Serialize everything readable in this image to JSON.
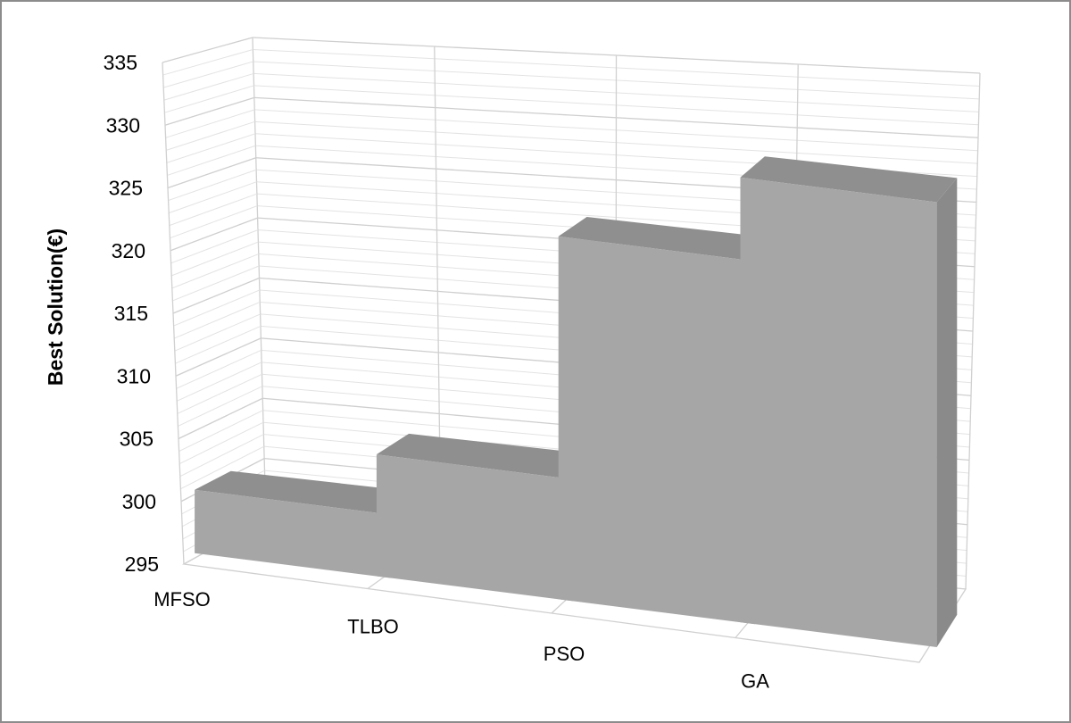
{
  "chart_data": {
    "type": "bar",
    "style": "3d-column",
    "categories": [
      "MFSO",
      "TLBO",
      "PSO",
      "GA"
    ],
    "values": [
      300.1,
      304.8,
      324.2,
      330.8
    ],
    "xlabel": "",
    "ylabel": "Best Solution(€)",
    "ylim": [
      295,
      335
    ],
    "y_ticks": [
      "295",
      "300",
      "305",
      "310",
      "315",
      "320",
      "325",
      "330",
      "335"
    ],
    "y_minor_step": 1,
    "grid": true,
    "legend": "none",
    "colors": {
      "bar_front": "#a6a6a6",
      "bar_top": "#8f8f8f",
      "bar_side": "#8a8a8a",
      "grid": "#d9d9d9",
      "frame": "#8c8c8c"
    }
  }
}
